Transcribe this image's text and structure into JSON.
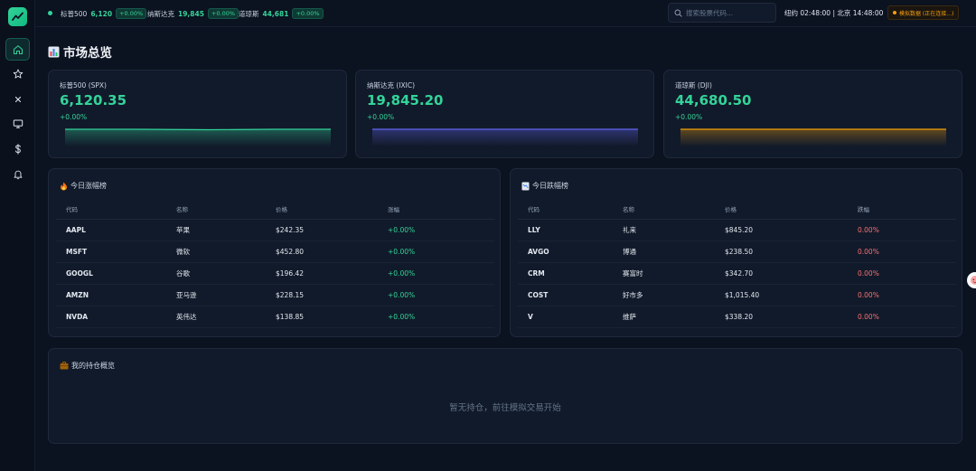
{
  "header": {
    "tickers": [
      {
        "name": "标普500",
        "value": "6,120",
        "change": "+0.00%"
      },
      {
        "name": "纳斯达克",
        "value": "19,845",
        "change": "+0.00%"
      },
      {
        "name": "道琼斯",
        "value": "44,681",
        "change": "+0.00%"
      }
    ],
    "search_placeholder": "搜索股票代码...",
    "clock": "纽约 02:48:00 | 北京 14:48:00",
    "sim_badge": "模拟数据 (正在连接...)"
  },
  "sidebar": {
    "items": [
      {
        "icon": "home-icon"
      },
      {
        "icon": "star-icon"
      },
      {
        "icon": "close-icon"
      },
      {
        "icon": "monitor-icon"
      },
      {
        "icon": "dollar-icon"
      },
      {
        "icon": "bell-icon"
      }
    ]
  },
  "page": {
    "title": "市场总览",
    "title_icon": "bar-chart-icon"
  },
  "indices": [
    {
      "name": "标普500 (SPX)",
      "value": "6,120.35",
      "change": "+0.00%",
      "color": "#34d399"
    },
    {
      "name": "纳斯达克 (IXIC)",
      "value": "19,845.20",
      "change": "+0.00%",
      "color": "#6366f1"
    },
    {
      "name": "道琼斯 (DJI)",
      "value": "44,680.50",
      "change": "+0.00%",
      "color": "#f59e0b"
    }
  ],
  "gainers": {
    "title": "今日涨幅榜",
    "icon": "fire-icon",
    "headers": [
      "代码",
      "名称",
      "价格",
      "涨幅"
    ],
    "rows": [
      {
        "symbol": "AAPL",
        "name": "苹果",
        "price": "$242.35",
        "change": "+0.00%"
      },
      {
        "symbol": "MSFT",
        "name": "微软",
        "price": "$452.80",
        "change": "+0.00%"
      },
      {
        "symbol": "GOOGL",
        "name": "谷歌",
        "price": "$196.42",
        "change": "+0.00%"
      },
      {
        "symbol": "AMZN",
        "name": "亚马逊",
        "price": "$228.15",
        "change": "+0.00%"
      },
      {
        "symbol": "NVDA",
        "name": "英伟达",
        "price": "$138.85",
        "change": "+0.00%"
      }
    ]
  },
  "losers": {
    "title": "今日跌幅榜",
    "icon": "chart-down-icon",
    "headers": [
      "代码",
      "名称",
      "价格",
      "跌幅"
    ],
    "rows": [
      {
        "symbol": "LLY",
        "name": "礼来",
        "price": "$845.20",
        "change": "0.00%"
      },
      {
        "symbol": "AVGO",
        "name": "博通",
        "price": "$238.50",
        "change": "0.00%"
      },
      {
        "symbol": "CRM",
        "name": "赛富时",
        "price": "$342.70",
        "change": "0.00%"
      },
      {
        "symbol": "COST",
        "name": "好市多",
        "price": "$1,015.40",
        "change": "0.00%"
      },
      {
        "symbol": "V",
        "name": "维萨",
        "price": "$338.20",
        "change": "0.00%"
      }
    ]
  },
  "holdings": {
    "title": "我的持仓概览",
    "icon": "briefcase-icon",
    "empty_text": "暂无持仓，前往模拟交易开始"
  }
}
